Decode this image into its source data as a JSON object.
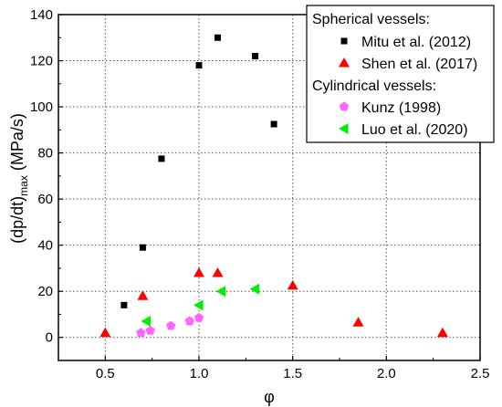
{
  "chart_data": {
    "type": "scatter",
    "xlabel": "φ",
    "ylabel": {
      "main": "(dp/dt)",
      "sub": "max",
      "unit": " (MPa/s)"
    },
    "xlim": [
      0.25,
      2.5
    ],
    "ylim": [
      -10,
      140
    ],
    "x_ticks": [
      0.5,
      1.0,
      1.5,
      2.0,
      2.5
    ],
    "x_tick_labels": [
      "0.5",
      "1.0",
      "1.5",
      "2.0",
      "2.5"
    ],
    "y_ticks": [
      0,
      20,
      40,
      60,
      80,
      100,
      120,
      140
    ],
    "y_tick_labels": [
      "0",
      "20",
      "40",
      "60",
      "80",
      "100",
      "120",
      "140"
    ],
    "grid": "dotted",
    "legend_position": "top-right",
    "legend_groups": [
      {
        "heading": "Spherical vessels:",
        "series": [
          "Mitu et al. (2012)",
          "Shen et al. (2017)"
        ]
      },
      {
        "heading": "Cylindrical vessels:",
        "series": [
          "Kunz (1998)",
          "Luo et al. (2020)"
        ]
      }
    ],
    "series": [
      {
        "name": "Mitu et al. (2012)",
        "marker": "square",
        "color": "#000000",
        "points": [
          [
            0.6,
            14
          ],
          [
            0.7,
            39
          ],
          [
            0.8,
            77.5
          ],
          [
            1.0,
            118
          ],
          [
            1.1,
            130
          ],
          [
            1.3,
            122
          ],
          [
            1.4,
            92.5
          ]
        ]
      },
      {
        "name": "Shen et al. (2017)",
        "marker": "triangle-up",
        "color": "#ff0000",
        "points": [
          [
            0.5,
            2
          ],
          [
            0.7,
            18
          ],
          [
            1.0,
            28
          ],
          [
            1.1,
            28
          ],
          [
            1.5,
            22.5
          ],
          [
            1.85,
            6.5
          ],
          [
            2.3,
            2
          ]
        ]
      },
      {
        "name": "Kunz (1998)",
        "marker": "pentagon",
        "color": "#ff66ff",
        "points": [
          [
            0.69,
            2
          ],
          [
            0.74,
            3
          ],
          [
            0.85,
            5
          ],
          [
            0.95,
            7
          ],
          [
            1.0,
            8.5
          ]
        ]
      },
      {
        "name": "Luo et al. (2020)",
        "marker": "triangle-left",
        "color": "#00ee00",
        "points": [
          [
            0.72,
            7
          ],
          [
            1.0,
            14
          ],
          [
            1.12,
            20
          ],
          [
            1.3,
            21
          ]
        ]
      }
    ]
  }
}
